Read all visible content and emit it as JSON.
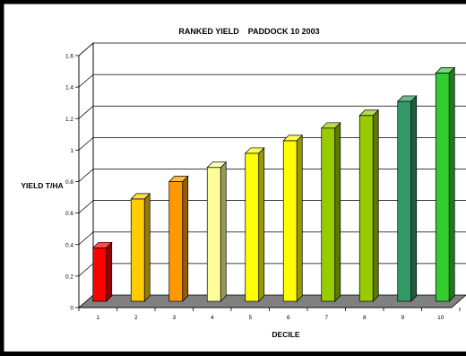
{
  "chart_data": {
    "type": "bar",
    "title": "RANKED YIELD    PADDOCK 10 2003",
    "xlabel": "DECILE",
    "ylabel": "YIELD T/HA",
    "categories": [
      "1",
      "2",
      "3",
      "4",
      "5",
      "6",
      "7",
      "8",
      "9",
      "10"
    ],
    "values": [
      0.34,
      0.65,
      0.76,
      0.85,
      0.94,
      1.02,
      1.1,
      1.18,
      1.27,
      1.45
    ],
    "ylim": [
      0,
      1.6
    ],
    "yticks": [
      "0",
      "0.2",
      "0.4",
      "0.6",
      "0.8",
      "1",
      "1.2",
      "1.4",
      "1.6"
    ],
    "grid": true,
    "legend": "none",
    "colors": [
      "#ff0000",
      "#ffcc00",
      "#ff9900",
      "#ffff99",
      "#ffff00",
      "#ffff00",
      "#99cc00",
      "#99cc00",
      "#339966",
      "#33cc33"
    ]
  }
}
